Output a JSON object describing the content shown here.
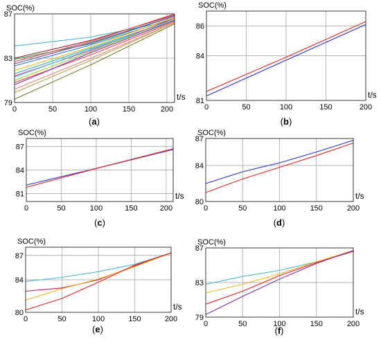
{
  "chart_data": [
    {
      "panel": "a",
      "type": "line",
      "caption": "(a)",
      "ylabel": "SOC(%)",
      "xlabel": "t/s",
      "xlim": [
        0,
        210
      ],
      "ylim": [
        79,
        87
      ],
      "xticks": [
        0,
        50,
        100,
        150,
        200
      ],
      "yticks": [
        79,
        83,
        87
      ],
      "grid": true,
      "series": [
        {
          "color": "#4bb5d8",
          "values": [
            [
              0,
              84.1
            ],
            [
              100,
              84.9
            ],
            [
              210,
              86.4
            ]
          ]
        },
        {
          "color": "#8e1b2d",
          "values": [
            [
              0,
              83.0
            ],
            [
              100,
              84.6
            ],
            [
              210,
              86.9
            ]
          ]
        },
        {
          "color": "#2f9e4f",
          "values": [
            [
              0,
              82.9
            ],
            [
              100,
              84.3
            ],
            [
              210,
              86.8
            ]
          ]
        },
        {
          "color": "#e8493f",
          "values": [
            [
              0,
              82.7
            ],
            [
              100,
              84.5
            ],
            [
              210,
              87.0
            ]
          ]
        },
        {
          "color": "#6a3fa0",
          "values": [
            [
              0,
              82.5
            ],
            [
              100,
              84.4
            ],
            [
              210,
              86.8
            ]
          ]
        },
        {
          "color": "#3d7fd6",
          "values": [
            [
              0,
              82.3
            ],
            [
              100,
              84.2
            ],
            [
              210,
              86.6
            ]
          ]
        },
        {
          "color": "#f2b21c",
          "values": [
            [
              0,
              81.9
            ],
            [
              100,
              84.0
            ],
            [
              210,
              86.7
            ]
          ]
        },
        {
          "color": "#20b2aa",
          "values": [
            [
              0,
              81.6
            ],
            [
              100,
              83.9
            ],
            [
              210,
              86.5
            ]
          ]
        },
        {
          "color": "#d94fb5",
          "values": [
            [
              0,
              81.4
            ],
            [
              100,
              83.7
            ],
            [
              210,
              86.6
            ]
          ]
        },
        {
          "color": "#4bb5d8",
          "values": [
            [
              0,
              81.3
            ],
            [
              100,
              83.8
            ],
            [
              210,
              86.4
            ]
          ]
        },
        {
          "color": "#9acd32",
          "values": [
            [
              0,
              81.0
            ],
            [
              100,
              83.6
            ],
            [
              210,
              86.5
            ]
          ]
        },
        {
          "color": "#e8493f",
          "values": [
            [
              0,
              80.8
            ],
            [
              100,
              83.3
            ],
            [
              210,
              86.3
            ]
          ]
        },
        {
          "color": "#7b2fbe",
          "values": [
            [
              0,
              80.6
            ],
            [
              100,
              83.5
            ],
            [
              210,
              86.4
            ]
          ]
        },
        {
          "color": "#f08080",
          "values": [
            [
              0,
              80.2
            ],
            [
              100,
              83.0
            ],
            [
              210,
              86.2
            ]
          ]
        },
        {
          "color": "#b5a642",
          "values": [
            [
              0,
              79.9
            ],
            [
              100,
              82.8
            ],
            [
              210,
              86.2
            ]
          ]
        },
        {
          "color": "#7a7a2a",
          "values": [
            [
              0,
              79.3
            ],
            [
              100,
              82.4
            ],
            [
              210,
              86.1
            ]
          ]
        }
      ]
    },
    {
      "panel": "b",
      "type": "line",
      "caption": "(b)",
      "ylabel": "SOC(%)",
      "xlabel": "t/s",
      "xlim": [
        0,
        200
      ],
      "ylim": [
        81,
        87
      ],
      "xticks": [
        0,
        50,
        100,
        150,
        200
      ],
      "yticks": [
        81,
        84,
        86
      ],
      "grid": true,
      "series": [
        {
          "color": "#e8231f",
          "values": [
            [
              0,
              81.6
            ],
            [
              100,
              83.9
            ],
            [
              200,
              86.3
            ]
          ]
        },
        {
          "color": "#2b2fd4",
          "values": [
            [
              0,
              81.3
            ],
            [
              100,
              83.7
            ],
            [
              200,
              86.1
            ]
          ]
        }
      ]
    },
    {
      "panel": "c",
      "type": "line",
      "caption": "(c)",
      "ylabel": "SOC(%)",
      "xlabel": "t/s",
      "xlim": [
        0,
        210
      ],
      "ylim": [
        80,
        88
      ],
      "xticks": [
        0,
        50,
        100,
        150,
        200
      ],
      "yticks": [
        81,
        84,
        87
      ],
      "grid": true,
      "series": [
        {
          "color": "#2b2fd4",
          "values": [
            [
              0,
              82.1
            ],
            [
              100,
              84.2
            ],
            [
              210,
              86.6
            ]
          ]
        },
        {
          "color": "#e8231f",
          "values": [
            [
              0,
              81.8
            ],
            [
              100,
              84.2
            ],
            [
              210,
              86.7
            ]
          ]
        }
      ]
    },
    {
      "panel": "d",
      "type": "line",
      "caption": "(d)",
      "ylabel": "SOC(%)",
      "xlabel": "t/s",
      "xlim": [
        0,
        200
      ],
      "ylim": [
        80,
        87
      ],
      "xticks": [
        0,
        50,
        100,
        150,
        200
      ],
      "yticks": [
        80,
        84,
        87
      ],
      "grid": true,
      "series": [
        {
          "color": "#2b2fd4",
          "values": [
            [
              0,
              82.0
            ],
            [
              50,
              83.3
            ],
            [
              100,
              84.3
            ],
            [
              150,
              85.5
            ],
            [
              200,
              86.8
            ]
          ]
        },
        {
          "color": "#e8231f",
          "values": [
            [
              0,
              81.0
            ],
            [
              50,
              82.5
            ],
            [
              100,
              83.8
            ],
            [
              150,
              85.1
            ],
            [
              200,
              86.5
            ]
          ]
        }
      ]
    },
    {
      "panel": "e",
      "type": "line",
      "caption": "(e)",
      "ylabel": "SOC(%)",
      "xlabel": "t/s",
      "xlim": [
        0,
        200
      ],
      "ylim": [
        80,
        88
      ],
      "xticks": [
        0,
        50,
        100,
        150,
        200
      ],
      "yticks": [
        80,
        84,
        87
      ],
      "grid": true,
      "series": [
        {
          "color": "#4bb5d8",
          "values": [
            [
              0,
              83.8
            ],
            [
              50,
              84.3
            ],
            [
              100,
              85.0
            ],
            [
              150,
              85.9
            ],
            [
              200,
              87.3
            ]
          ]
        },
        {
          "color": "#c2185b",
          "values": [
            [
              0,
              82.6
            ],
            [
              50,
              83.0
            ],
            [
              100,
              84.0
            ],
            [
              150,
              85.7
            ],
            [
              200,
              87.3
            ]
          ]
        },
        {
          "color": "#f2b21c",
          "values": [
            [
              0,
              81.5
            ],
            [
              50,
              82.9
            ],
            [
              100,
              84.1
            ],
            [
              150,
              85.6
            ],
            [
              200,
              87.3
            ]
          ]
        },
        {
          "color": "#e8231f",
          "values": [
            [
              0,
              80.3
            ],
            [
              50,
              81.7
            ],
            [
              100,
              83.7
            ],
            [
              150,
              85.8
            ],
            [
              200,
              87.3
            ]
          ]
        }
      ]
    },
    {
      "panel": "f",
      "type": "line",
      "caption": "(f)",
      "ylabel": "SOC(%)",
      "xlabel": "t/s",
      "xlim": [
        0,
        200
      ],
      "ylim": [
        79,
        87
      ],
      "xticks": [
        0,
        50,
        100,
        150,
        200
      ],
      "yticks": [
        79,
        83,
        87
      ],
      "grid": true,
      "series": [
        {
          "color": "#4bb5d8",
          "values": [
            [
              0,
              82.8
            ],
            [
              50,
              83.7
            ],
            [
              100,
              84.4
            ],
            [
              150,
              85.4
            ],
            [
              200,
              86.7
            ]
          ]
        },
        {
          "color": "#f2b21c",
          "values": [
            [
              0,
              81.8
            ],
            [
              50,
              82.8
            ],
            [
              100,
              84.0
            ],
            [
              150,
              85.4
            ],
            [
              200,
              86.7
            ]
          ]
        },
        {
          "color": "#e8231f",
          "values": [
            [
              0,
              80.5
            ],
            [
              50,
              82.0
            ],
            [
              100,
              83.8
            ],
            [
              150,
              85.3
            ],
            [
              200,
              86.6
            ]
          ]
        },
        {
          "color": "#7b2fbe",
          "values": [
            [
              0,
              79.3
            ],
            [
              50,
              81.4
            ],
            [
              100,
              83.4
            ],
            [
              150,
              85.2
            ],
            [
              200,
              86.7
            ]
          ]
        }
      ]
    }
  ]
}
